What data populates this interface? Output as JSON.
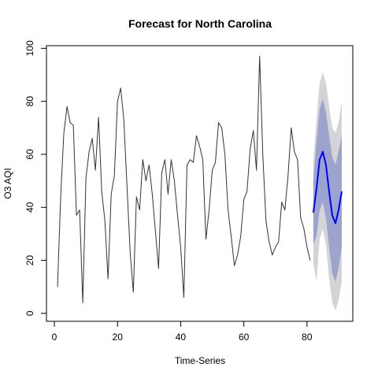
{
  "chart_data": {
    "type": "line",
    "title": "Forecast for North Carolina",
    "xlabel": "Time-Series",
    "ylabel": "O3 AQI",
    "xlim": [
      -2.5,
      94.5
    ],
    "ylim": [
      -3,
      101
    ],
    "x_ticks": [
      0,
      20,
      40,
      60,
      80
    ],
    "y_ticks": [
      0,
      20,
      40,
      60,
      80,
      100
    ],
    "grid": false,
    "colors": {
      "history": "#333333",
      "forecast": "#0000ff",
      "band_inner": "#9ca3cc",
      "band_outer": "#d4d4d8"
    },
    "series": [
      {
        "role": "history",
        "x": [
          1,
          2,
          3,
          4,
          5,
          6,
          7,
          8,
          9,
          10,
          11,
          12,
          13,
          14,
          15,
          16,
          17,
          18,
          19,
          20,
          21,
          22,
          23,
          24,
          25,
          26,
          27,
          28,
          29,
          30,
          31,
          32,
          33,
          34,
          35,
          36,
          37,
          38,
          39,
          40,
          41,
          42,
          43,
          44,
          45,
          46,
          47,
          48,
          49,
          50,
          51,
          52,
          53,
          54,
          55,
          56,
          57,
          58,
          59,
          60,
          61,
          62,
          63,
          64,
          65,
          66,
          67,
          68,
          69,
          70,
          71,
          72,
          73,
          74,
          75,
          76,
          77,
          78,
          79,
          80,
          81,
          82
        ],
        "values": [
          10,
          44,
          68,
          78,
          72,
          71,
          37,
          39,
          4,
          51,
          61,
          66,
          54,
          74,
          46,
          35,
          13,
          45,
          52,
          80,
          85,
          73,
          48,
          23,
          8,
          44,
          39,
          58,
          50,
          56,
          45,
          31,
          17,
          53,
          58,
          45,
          58,
          50,
          37,
          25,
          6,
          56,
          58,
          57,
          67,
          63,
          58,
          28,
          39,
          54,
          57,
          72,
          70,
          60,
          39,
          29,
          18,
          22,
          29,
          43,
          46,
          62,
          69,
          54,
          97,
          60,
          35,
          27,
          22,
          25,
          27,
          42,
          39,
          52,
          70,
          61,
          58,
          36,
          32,
          25,
          20,
          null
        ]
      },
      {
        "role": "forecast",
        "x": [
          82,
          83,
          84,
          85,
          86,
          87,
          88,
          89,
          90,
          91
        ],
        "values": [
          38,
          47,
          58,
          61,
          56,
          46,
          37,
          34,
          39,
          46
        ],
        "band80_upper": [
          50,
          65,
          77,
          81,
          76,
          67,
          59,
          56,
          61,
          67
        ],
        "band80_lower": [
          26,
          29,
          39,
          42,
          36,
          25,
          15,
          12,
          17,
          25
        ],
        "band95_upper": [
          57,
          73,
          87,
          91,
          87,
          78,
          70,
          68,
          72,
          80
        ],
        "band95_lower": [
          19,
          12,
          28,
          32,
          26,
          13,
          4,
          1,
          5,
          12
        ]
      }
    ]
  }
}
